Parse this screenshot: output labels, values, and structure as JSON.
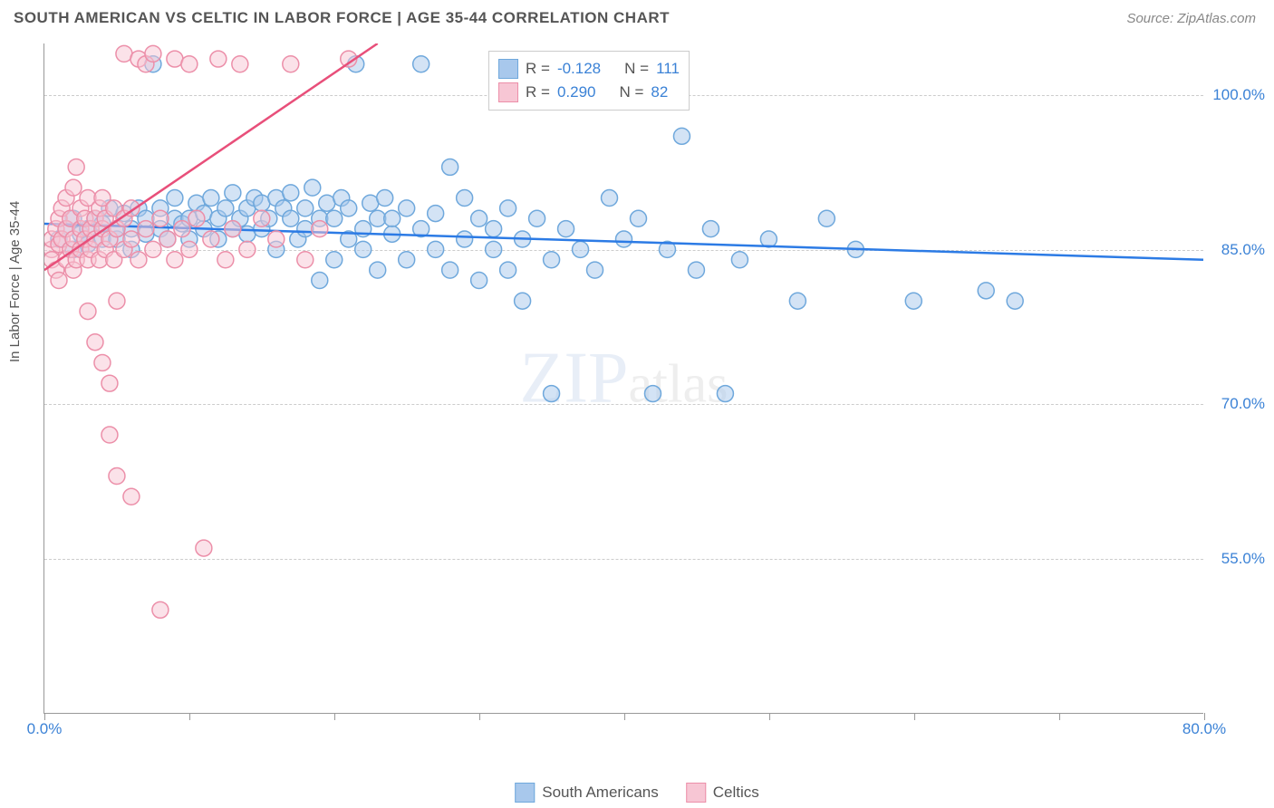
{
  "header": {
    "title": "SOUTH AMERICAN VS CELTIC IN LABOR FORCE | AGE 35-44 CORRELATION CHART",
    "source": "Source: ZipAtlas.com"
  },
  "watermark": {
    "part1": "ZIP",
    "part2": "atlas"
  },
  "ylabel": "In Labor Force | Age 35-44",
  "chart": {
    "type": "scatter",
    "background_color": "#ffffff",
    "grid_color": "#cccccc",
    "axis_color": "#999999",
    "text_color": "#555555",
    "value_color": "#3b82d6",
    "xlim": [
      0,
      80
    ],
    "ylim": [
      40,
      105
    ],
    "xticks": [
      0,
      10,
      20,
      30,
      40,
      50,
      60,
      70,
      80
    ],
    "xtick_labels": {
      "0": "0.0%",
      "80": "80.0%"
    },
    "yticks": [
      55,
      70,
      85,
      100
    ],
    "ytick_labels": {
      "55": "55.0%",
      "70": "70.0%",
      "85": "85.0%",
      "100": "100.0%"
    },
    "marker_radius": 9,
    "marker_opacity": 0.5,
    "line_width": 2.5,
    "series": [
      {
        "name": "South Americans",
        "color_fill": "#a8c8ec",
        "color_stroke": "#6fa8dc",
        "trend_color": "#2c7be5",
        "R": "-0.128",
        "N": "111",
        "trend": {
          "x1": 0,
          "y1": 87.5,
          "x2": 80,
          "y2": 84.0
        },
        "points": [
          [
            1,
            86
          ],
          [
            1.5,
            87
          ],
          [
            2,
            85
          ],
          [
            2,
            88
          ],
          [
            2.5,
            86.5
          ],
          [
            3,
            87
          ],
          [
            3,
            85.5
          ],
          [
            3.5,
            88
          ],
          [
            4,
            86
          ],
          [
            4,
            87.5
          ],
          [
            4.5,
            89
          ],
          [
            5,
            86
          ],
          [
            5,
            87
          ],
          [
            5.5,
            88.5
          ],
          [
            6,
            85
          ],
          [
            6,
            87
          ],
          [
            6.5,
            89
          ],
          [
            7,
            86.5
          ],
          [
            7,
            88
          ],
          [
            7.5,
            103
          ],
          [
            8,
            87
          ],
          [
            8,
            89
          ],
          [
            8.5,
            86
          ],
          [
            9,
            88
          ],
          [
            9,
            90
          ],
          [
            9.5,
            87.5
          ],
          [
            10,
            88
          ],
          [
            10,
            86
          ],
          [
            10.5,
            89.5
          ],
          [
            11,
            87
          ],
          [
            11,
            88.5
          ],
          [
            11.5,
            90
          ],
          [
            12,
            86
          ],
          [
            12,
            88
          ],
          [
            12.5,
            89
          ],
          [
            13,
            87
          ],
          [
            13,
            90.5
          ],
          [
            13.5,
            88
          ],
          [
            14,
            89
          ],
          [
            14,
            86.5
          ],
          [
            14.5,
            90
          ],
          [
            15,
            87
          ],
          [
            15,
            89.5
          ],
          [
            15.5,
            88
          ],
          [
            16,
            90
          ],
          [
            16,
            85
          ],
          [
            16.5,
            89
          ],
          [
            17,
            88
          ],
          [
            17,
            90.5
          ],
          [
            17.5,
            86
          ],
          [
            18,
            89
          ],
          [
            18,
            87
          ],
          [
            18.5,
            91
          ],
          [
            19,
            88
          ],
          [
            19,
            82
          ],
          [
            19.5,
            89.5
          ],
          [
            20,
            84
          ],
          [
            20,
            88
          ],
          [
            20.5,
            90
          ],
          [
            21,
            86
          ],
          [
            21,
            89
          ],
          [
            21.5,
            103
          ],
          [
            22,
            87
          ],
          [
            22,
            85
          ],
          [
            22.5,
            89.5
          ],
          [
            23,
            88
          ],
          [
            23,
            83
          ],
          [
            23.5,
            90
          ],
          [
            24,
            86.5
          ],
          [
            24,
            88
          ],
          [
            25,
            84
          ],
          [
            25,
            89
          ],
          [
            26,
            87
          ],
          [
            26,
            103
          ],
          [
            27,
            85
          ],
          [
            27,
            88.5
          ],
          [
            28,
            93
          ],
          [
            28,
            83
          ],
          [
            29,
            86
          ],
          [
            29,
            90
          ],
          [
            30,
            82
          ],
          [
            30,
            88
          ],
          [
            31,
            85
          ],
          [
            31,
            87
          ],
          [
            32,
            83
          ],
          [
            32,
            89
          ],
          [
            33,
            80
          ],
          [
            33,
            86
          ],
          [
            34,
            88
          ],
          [
            35,
            84
          ],
          [
            35,
            71
          ],
          [
            36,
            87
          ],
          [
            37,
            85
          ],
          [
            38,
            83
          ],
          [
            39,
            90
          ],
          [
            40,
            86
          ],
          [
            41,
            88
          ],
          [
            42,
            71
          ],
          [
            43,
            85
          ],
          [
            44,
            96
          ],
          [
            45,
            83
          ],
          [
            46,
            87
          ],
          [
            47,
            71
          ],
          [
            48,
            84
          ],
          [
            50,
            86
          ],
          [
            52,
            80
          ],
          [
            54,
            88
          ],
          [
            56,
            85
          ],
          [
            60,
            80
          ],
          [
            65,
            81
          ],
          [
            67,
            80
          ]
        ]
      },
      {
        "name": "Celtics",
        "color_fill": "#f7c6d4",
        "color_stroke": "#ec8fa9",
        "trend_color": "#e84f7a",
        "R": "0.290",
        "N": "82",
        "trend": {
          "x1": 0,
          "y1": 83,
          "x2": 23,
          "y2": 105
        },
        "points": [
          [
            0.5,
            85
          ],
          [
            0.5,
            86
          ],
          [
            0.5,
            84
          ],
          [
            0.8,
            87
          ],
          [
            0.8,
            83
          ],
          [
            1,
            88
          ],
          [
            1,
            85.5
          ],
          [
            1,
            82
          ],
          [
            1.2,
            86
          ],
          [
            1.2,
            89
          ],
          [
            1.5,
            84
          ],
          [
            1.5,
            87
          ],
          [
            1.5,
            90
          ],
          [
            1.8,
            85
          ],
          [
            1.8,
            88
          ],
          [
            2,
            86
          ],
          [
            2,
            83
          ],
          [
            2,
            91
          ],
          [
            2.2,
            93
          ],
          [
            2.2,
            84
          ],
          [
            2.5,
            87
          ],
          [
            2.5,
            85
          ],
          [
            2.5,
            89
          ],
          [
            2.8,
            86
          ],
          [
            2.8,
            88
          ],
          [
            3,
            84
          ],
          [
            3,
            90
          ],
          [
            3,
            79
          ],
          [
            3.2,
            87
          ],
          [
            3.2,
            85
          ],
          [
            3.5,
            88
          ],
          [
            3.5,
            76
          ],
          [
            3.5,
            86
          ],
          [
            3.8,
            89
          ],
          [
            3.8,
            84
          ],
          [
            4,
            87
          ],
          [
            4,
            74
          ],
          [
            4,
            90
          ],
          [
            4.2,
            85
          ],
          [
            4.2,
            88
          ],
          [
            4.5,
            72
          ],
          [
            4.5,
            86
          ],
          [
            4.5,
            67
          ],
          [
            4.8,
            89
          ],
          [
            4.8,
            84
          ],
          [
            5,
            80
          ],
          [
            5,
            87
          ],
          [
            5,
            63
          ],
          [
            5.5,
            85
          ],
          [
            5.5,
            88
          ],
          [
            5.5,
            104
          ],
          [
            6,
            61
          ],
          [
            6,
            86
          ],
          [
            6,
            89
          ],
          [
            6.5,
            103.5
          ],
          [
            6.5,
            84
          ],
          [
            7,
            87
          ],
          [
            7,
            103
          ],
          [
            7.5,
            85
          ],
          [
            7.5,
            104
          ],
          [
            8,
            88
          ],
          [
            8,
            50
          ],
          [
            8.5,
            86
          ],
          [
            9,
            103.5
          ],
          [
            9,
            84
          ],
          [
            9.5,
            87
          ],
          [
            10,
            85
          ],
          [
            10,
            103
          ],
          [
            10.5,
            88
          ],
          [
            11,
            56
          ],
          [
            11.5,
            86
          ],
          [
            12,
            103.5
          ],
          [
            12.5,
            84
          ],
          [
            13,
            87
          ],
          [
            13.5,
            103
          ],
          [
            14,
            85
          ],
          [
            15,
            88
          ],
          [
            16,
            86
          ],
          [
            17,
            103
          ],
          [
            18,
            84
          ],
          [
            19,
            87
          ],
          [
            21,
            103.5
          ]
        ]
      }
    ]
  },
  "legend_top": {
    "r_label": "R =",
    "n_label": "N ="
  },
  "legend_bottom": {
    "items": [
      "South Americans",
      "Celtics"
    ]
  }
}
